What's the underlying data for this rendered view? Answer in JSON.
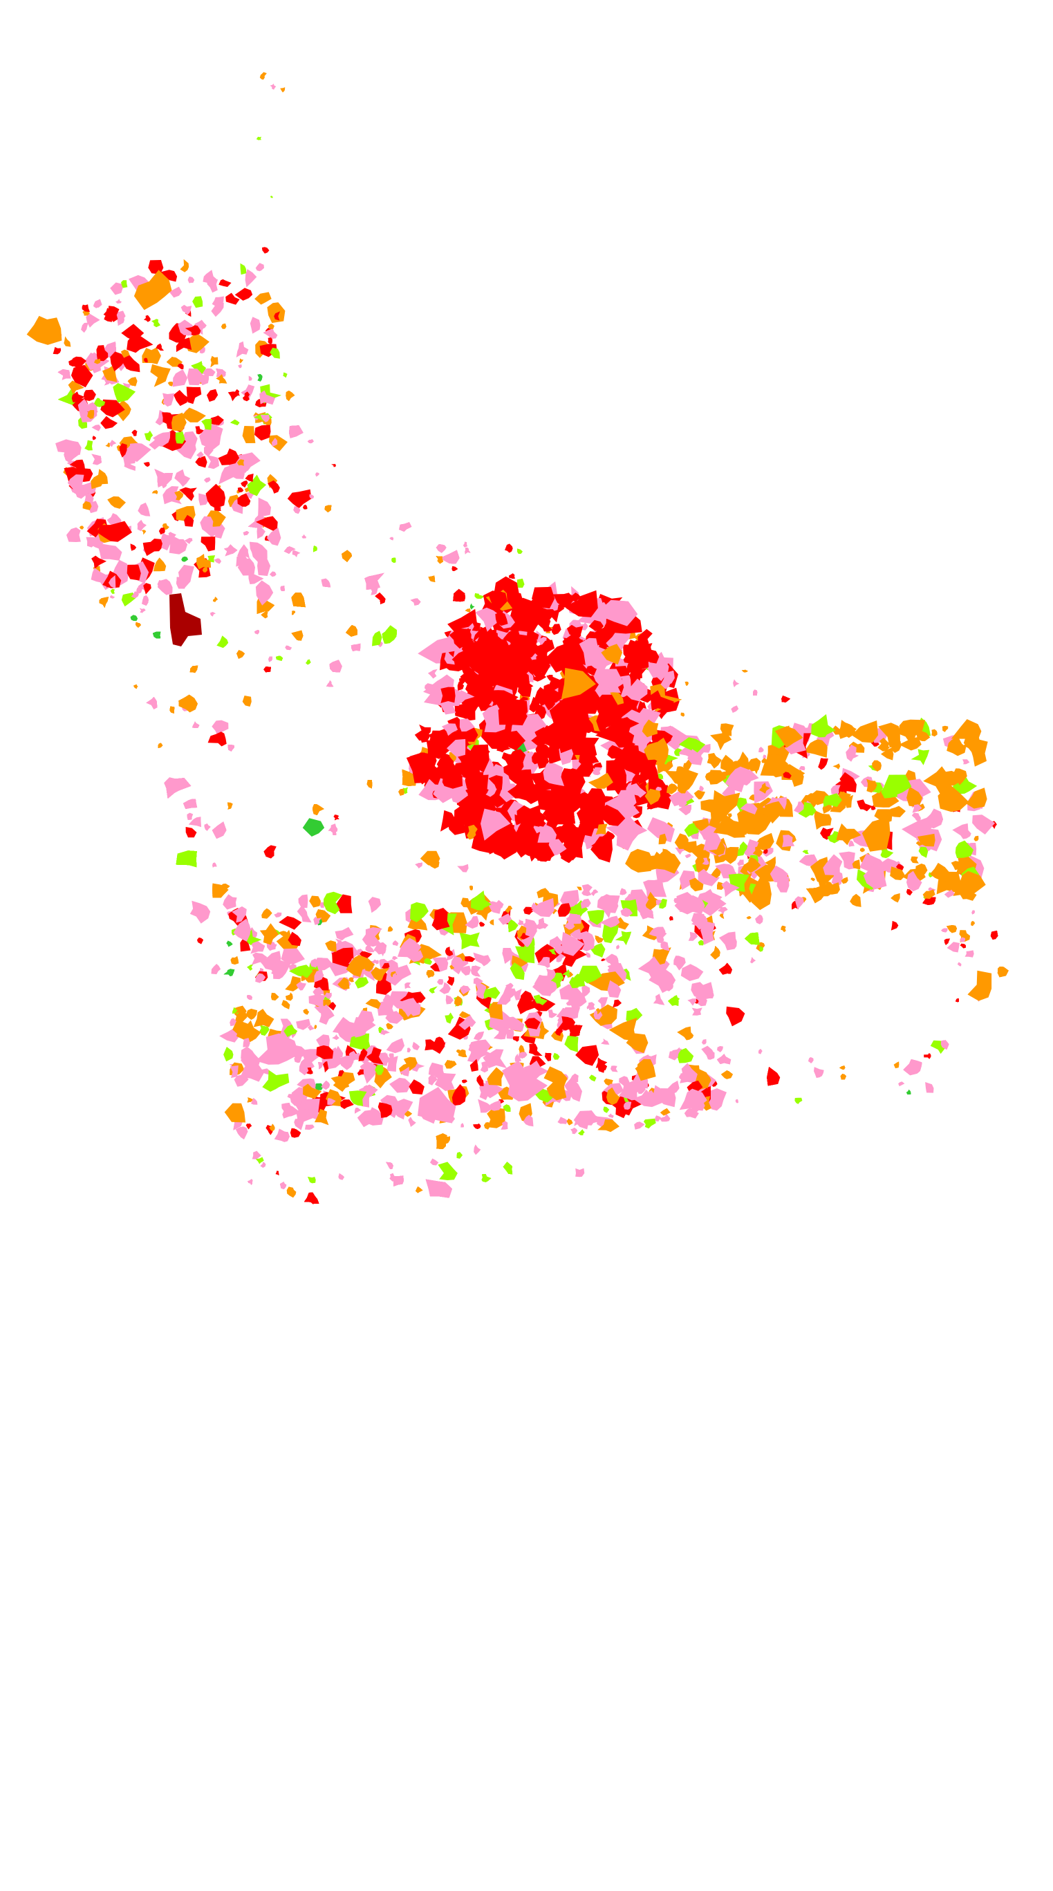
{
  "map": {
    "background": "#ffffff",
    "classes": [
      {
        "color": "#ff0000"
      },
      {
        "color": "#ff99cc"
      },
      {
        "color": "#ff9900"
      },
      {
        "color": "#99ff00"
      },
      {
        "color": "#33cc33"
      },
      {
        "color": "#aa0000"
      }
    ]
  }
}
